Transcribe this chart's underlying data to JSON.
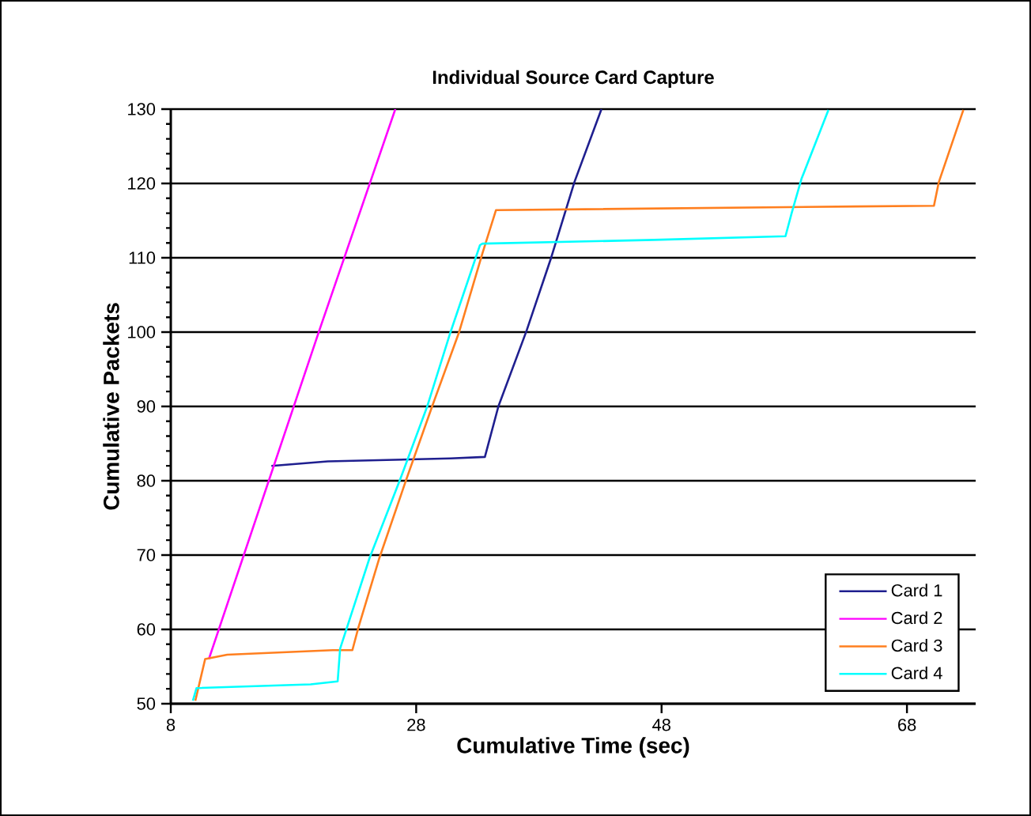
{
  "chart_data": {
    "type": "line",
    "title": "Individual Source Card Capture",
    "xlabel": "Cumulative Time (sec)",
    "ylabel": "Cumulative Packets",
    "xlim": [
      8,
      73.6
    ],
    "xticks": [
      8,
      28,
      48,
      68
    ],
    "ylim": [
      50,
      130
    ],
    "yticks": [
      50,
      60,
      70,
      80,
      90,
      100,
      110,
      120,
      130
    ],
    "grid": "y",
    "legend": "bottom right",
    "marker": "none",
    "line_style": "solid",
    "series": [
      {
        "name": "Card 1",
        "color": "#1f1f8f",
        "x": [
          16.2,
          20.8,
          30.8,
          33.6,
          34.7,
          37.0,
          39.0,
          40.9,
          43.1
        ],
        "values": [
          82,
          82.6,
          83,
          83.2,
          90,
          100.2,
          110,
          120.2,
          130
        ]
      },
      {
        "name": "Card 2",
        "color": "#ff00ff",
        "x": [
          11.1,
          20.1,
          26.3
        ],
        "values": [
          56,
          100.2,
          130
        ]
      },
      {
        "name": "Card 3",
        "color": "#ff7f1f",
        "x": [
          10,
          10.8,
          12.6,
          21.2,
          22.8,
          23.3,
          25,
          27.2,
          29.3,
          31.5,
          33.4,
          34.5,
          63.7,
          70.2,
          70.6,
          72.6
        ],
        "values": [
          50.4,
          56,
          56.6,
          57.2,
          57.2,
          60.3,
          69.6,
          80.2,
          90,
          100,
          110.6,
          116.4,
          116.9,
          117,
          120.2,
          129.9
        ]
      },
      {
        "name": "Card 4",
        "color": "#00ffff",
        "x": [
          9.8,
          10.1,
          19.4,
          21.6,
          21.8,
          24.2,
          26.7,
          28.9,
          30.8,
          33.2,
          33.4,
          47.4,
          58.1,
          58.6,
          59.4,
          61.6
        ],
        "values": [
          50.4,
          52.1,
          52.6,
          53,
          57.4,
          69.6,
          80.2,
          90,
          100,
          111.7,
          111.9,
          112.4,
          112.9,
          116,
          120.6,
          129.9
        ]
      }
    ]
  }
}
